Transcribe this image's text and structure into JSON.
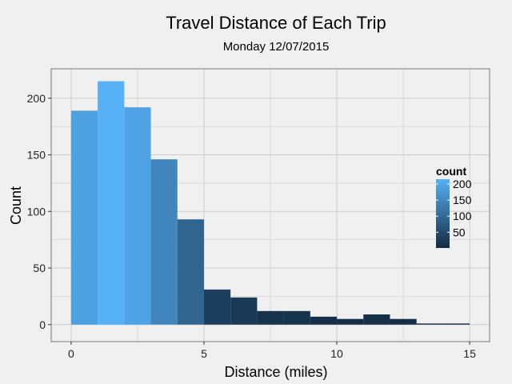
{
  "chart_data": {
    "type": "bar",
    "title": "Travel Distance of Each Trip",
    "subtitle": "Monday 12/07/2015",
    "xlabel": "Distance (miles)",
    "ylabel": "Count",
    "bins": [
      {
        "x0": 0,
        "x1": 1,
        "count": 189
      },
      {
        "x0": 1,
        "x1": 2,
        "count": 215
      },
      {
        "x0": 2,
        "x1": 3,
        "count": 192
      },
      {
        "x0": 3,
        "x1": 4,
        "count": 146
      },
      {
        "x0": 4,
        "x1": 5,
        "count": 93
      },
      {
        "x0": 5,
        "x1": 6,
        "count": 31
      },
      {
        "x0": 6,
        "x1": 7,
        "count": 24
      },
      {
        "x0": 7,
        "x1": 8,
        "count": 12
      },
      {
        "x0": 8,
        "x1": 9,
        "count": 12
      },
      {
        "x0": 9,
        "x1": 10,
        "count": 7
      },
      {
        "x0": 10,
        "x1": 11,
        "count": 5
      },
      {
        "x0": 11,
        "x1": 12,
        "count": 9
      },
      {
        "x0": 12,
        "x1": 13,
        "count": 5
      },
      {
        "x0": 13,
        "x1": 14,
        "count": 1
      },
      {
        "x0": 14,
        "x1": 15,
        "count": 1
      }
    ],
    "xlim": [
      -0.75,
      15.75
    ],
    "ylim": [
      -15,
      226
    ],
    "xticks": [
      0,
      5,
      10,
      15
    ],
    "yticks": [
      0,
      50,
      100,
      150,
      200
    ],
    "grid": true,
    "legend": {
      "title": "count",
      "placement": "right",
      "range": [
        1,
        215
      ],
      "ticks": [
        50,
        100,
        150,
        200
      ],
      "color_low": "#132b43",
      "color_high": "#56b1f7"
    },
    "colors": {
      "background": "#f0f0f0",
      "panel_border": "#777777",
      "grid": "#cccccc"
    }
  }
}
